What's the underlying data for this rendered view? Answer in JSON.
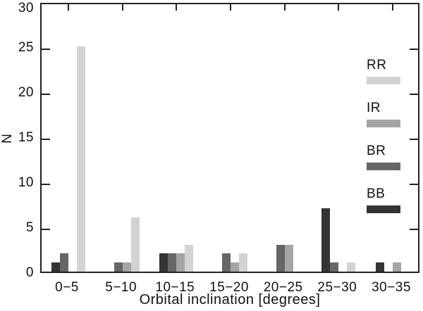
{
  "chart_data": {
    "type": "bar",
    "title": "",
    "xlabel": "Orbital inclination [degrees]",
    "ylabel": "N",
    "ylim": [
      0,
      30
    ],
    "yticks": [
      0,
      5,
      10,
      15,
      20,
      25,
      30
    ],
    "grid": false,
    "frame": "box-with-inward-ticks",
    "legend_position": "inside-right",
    "categories": [
      "0−5",
      "5−10",
      "10−15",
      "15−20",
      "20−25",
      "25−30",
      "30−35"
    ],
    "series": [
      {
        "name": "RR",
        "color": "#d3d3d3",
        "values": [
          25,
          6,
          3,
          2,
          0,
          1,
          0
        ]
      },
      {
        "name": "IR",
        "color": "#a5a5a5",
        "values": [
          0,
          1,
          2,
          1,
          3,
          0,
          1
        ]
      },
      {
        "name": "BR",
        "color": "#666666",
        "values": [
          2,
          1,
          2,
          2,
          3,
          1,
          0
        ]
      },
      {
        "name": "BB",
        "color": "#343434",
        "values": [
          1,
          0,
          2,
          0,
          0,
          7,
          1
        ]
      }
    ],
    "bar_draw_order_left_to_right": [
      "BB",
      "BR",
      "IR",
      "RR"
    ],
    "axis_color": "#222222",
    "text_color": "#111111"
  }
}
